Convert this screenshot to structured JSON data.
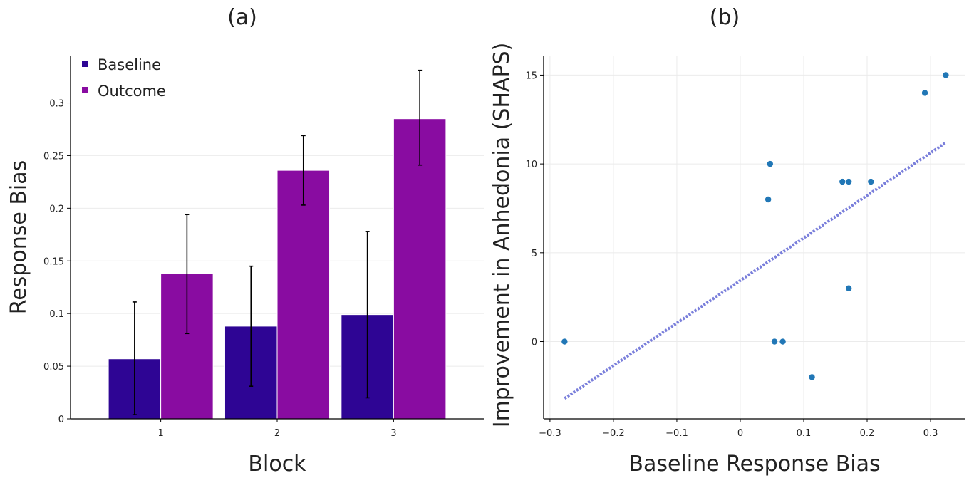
{
  "chart_data": [
    {
      "type": "bar",
      "panel_label": "(a)",
      "title": "",
      "xlabel": "Block",
      "ylabel": "Response Bias",
      "categories": [
        "1",
        "2",
        "3"
      ],
      "series": [
        {
          "name": "Baseline",
          "color": "#2e0594",
          "values": [
            0.057,
            0.088,
            0.099
          ],
          "error_low": [
            0.004,
            0.031,
            0.02
          ],
          "error_high": [
            0.111,
            0.145,
            0.178
          ]
        },
        {
          "name": "Outcome",
          "color": "#890ca1",
          "values": [
            0.138,
            0.236,
            0.285
          ],
          "error_low": [
            0.081,
            0.203,
            0.241
          ],
          "error_high": [
            0.194,
            0.269,
            0.331
          ]
        }
      ],
      "ylim": [
        0,
        0.345
      ],
      "yticks": [
        0,
        0.05,
        0.1,
        0.15,
        0.2,
        0.25,
        0.3
      ],
      "ytick_labels": [
        "0",
        "0.05",
        "0.1",
        "0.15",
        "0.2",
        "0.25",
        "0.3"
      ],
      "grid": true,
      "legend_position": "top-left"
    },
    {
      "type": "scatter",
      "panel_label": "(b)",
      "title": "",
      "xlabel": "Baseline Response Bias",
      "ylabel": "Improvement in Anhedonia (SHAPS)",
      "point_color": "#2177b6",
      "fit_line_color": "#7a7fdb",
      "points": [
        {
          "x": -0.277,
          "y": 0
        },
        {
          "x": 0.044,
          "y": 8
        },
        {
          "x": 0.047,
          "y": 10
        },
        {
          "x": 0.054,
          "y": 0
        },
        {
          "x": 0.067,
          "y": 0
        },
        {
          "x": 0.113,
          "y": -2
        },
        {
          "x": 0.161,
          "y": 9
        },
        {
          "x": 0.171,
          "y": 9
        },
        {
          "x": 0.171,
          "y": 3
        },
        {
          "x": 0.206,
          "y": 9
        },
        {
          "x": 0.291,
          "y": 14
        },
        {
          "x": 0.324,
          "y": 15
        }
      ],
      "fit_line": {
        "x1": -0.277,
        "y1": -3.2,
        "x2": 0.324,
        "y2": 11.2
      },
      "xlim": [
        -0.31,
        0.355
      ],
      "ylim": [
        -4.35,
        16.1
      ],
      "xticks": [
        -0.3,
        -0.2,
        -0.1,
        0,
        0.1,
        0.2,
        0.3
      ],
      "xtick_labels": [
        "−0.3",
        "−0.2",
        "−0.1",
        "0",
        "0.1",
        "0.2",
        "0.3"
      ],
      "yticks": [
        0,
        5,
        10,
        15
      ],
      "ytick_labels": [
        "0",
        "5",
        "10",
        "15"
      ],
      "grid": true
    }
  ]
}
